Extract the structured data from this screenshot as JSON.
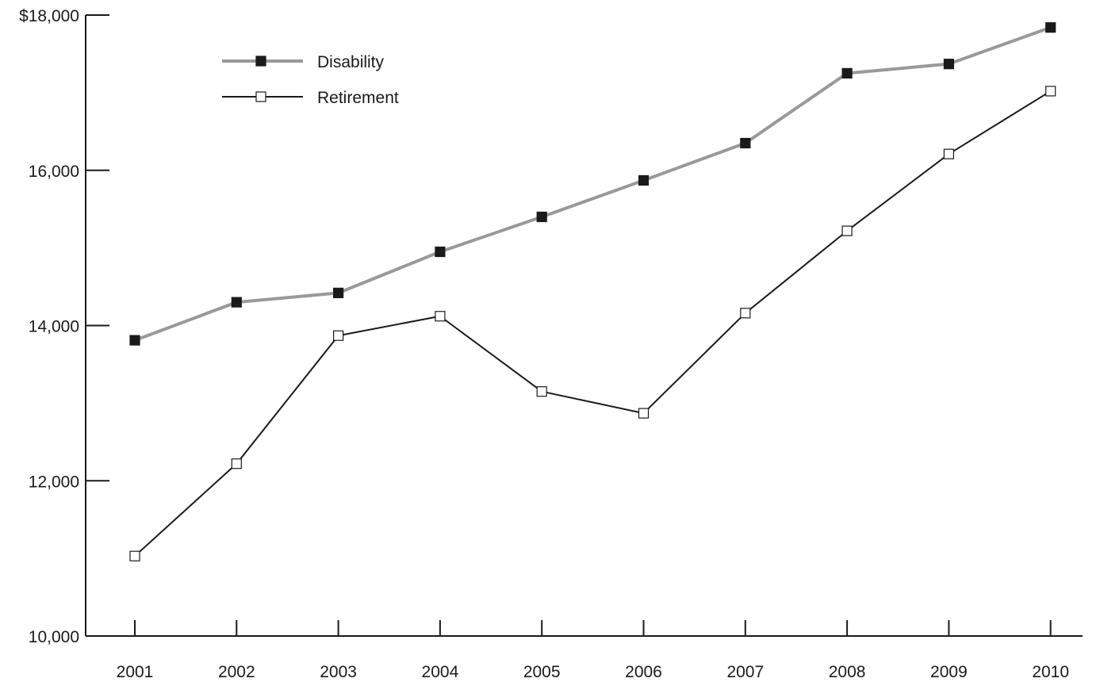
{
  "chart_data": {
    "type": "line",
    "title": "",
    "xlabel": "",
    "ylabel": "",
    "categories": [
      "2001",
      "2002",
      "2003",
      "2004",
      "2005",
      "2006",
      "2007",
      "2008",
      "2009",
      "2010"
    ],
    "ylim": [
      10000,
      18000
    ],
    "yticks": [
      10000,
      12000,
      14000,
      16000,
      18000
    ],
    "ytick_labels": [
      "10,000",
      "12,000",
      "14,000",
      "16,000",
      "$18,000"
    ],
    "grid": false,
    "legend_position": "top-left",
    "series": [
      {
        "name": "Disability",
        "values": [
          13810,
          14300,
          14420,
          14950,
          15400,
          15870,
          16350,
          17250,
          17370,
          17840
        ],
        "color": "#999999",
        "marker": "filled-square"
      },
      {
        "name": "Retirement",
        "values": [
          11030,
          12220,
          13870,
          14120,
          13150,
          12870,
          14160,
          15220,
          16210,
          17020
        ],
        "color": "#1a1a1a",
        "marker": "open-square"
      }
    ]
  }
}
